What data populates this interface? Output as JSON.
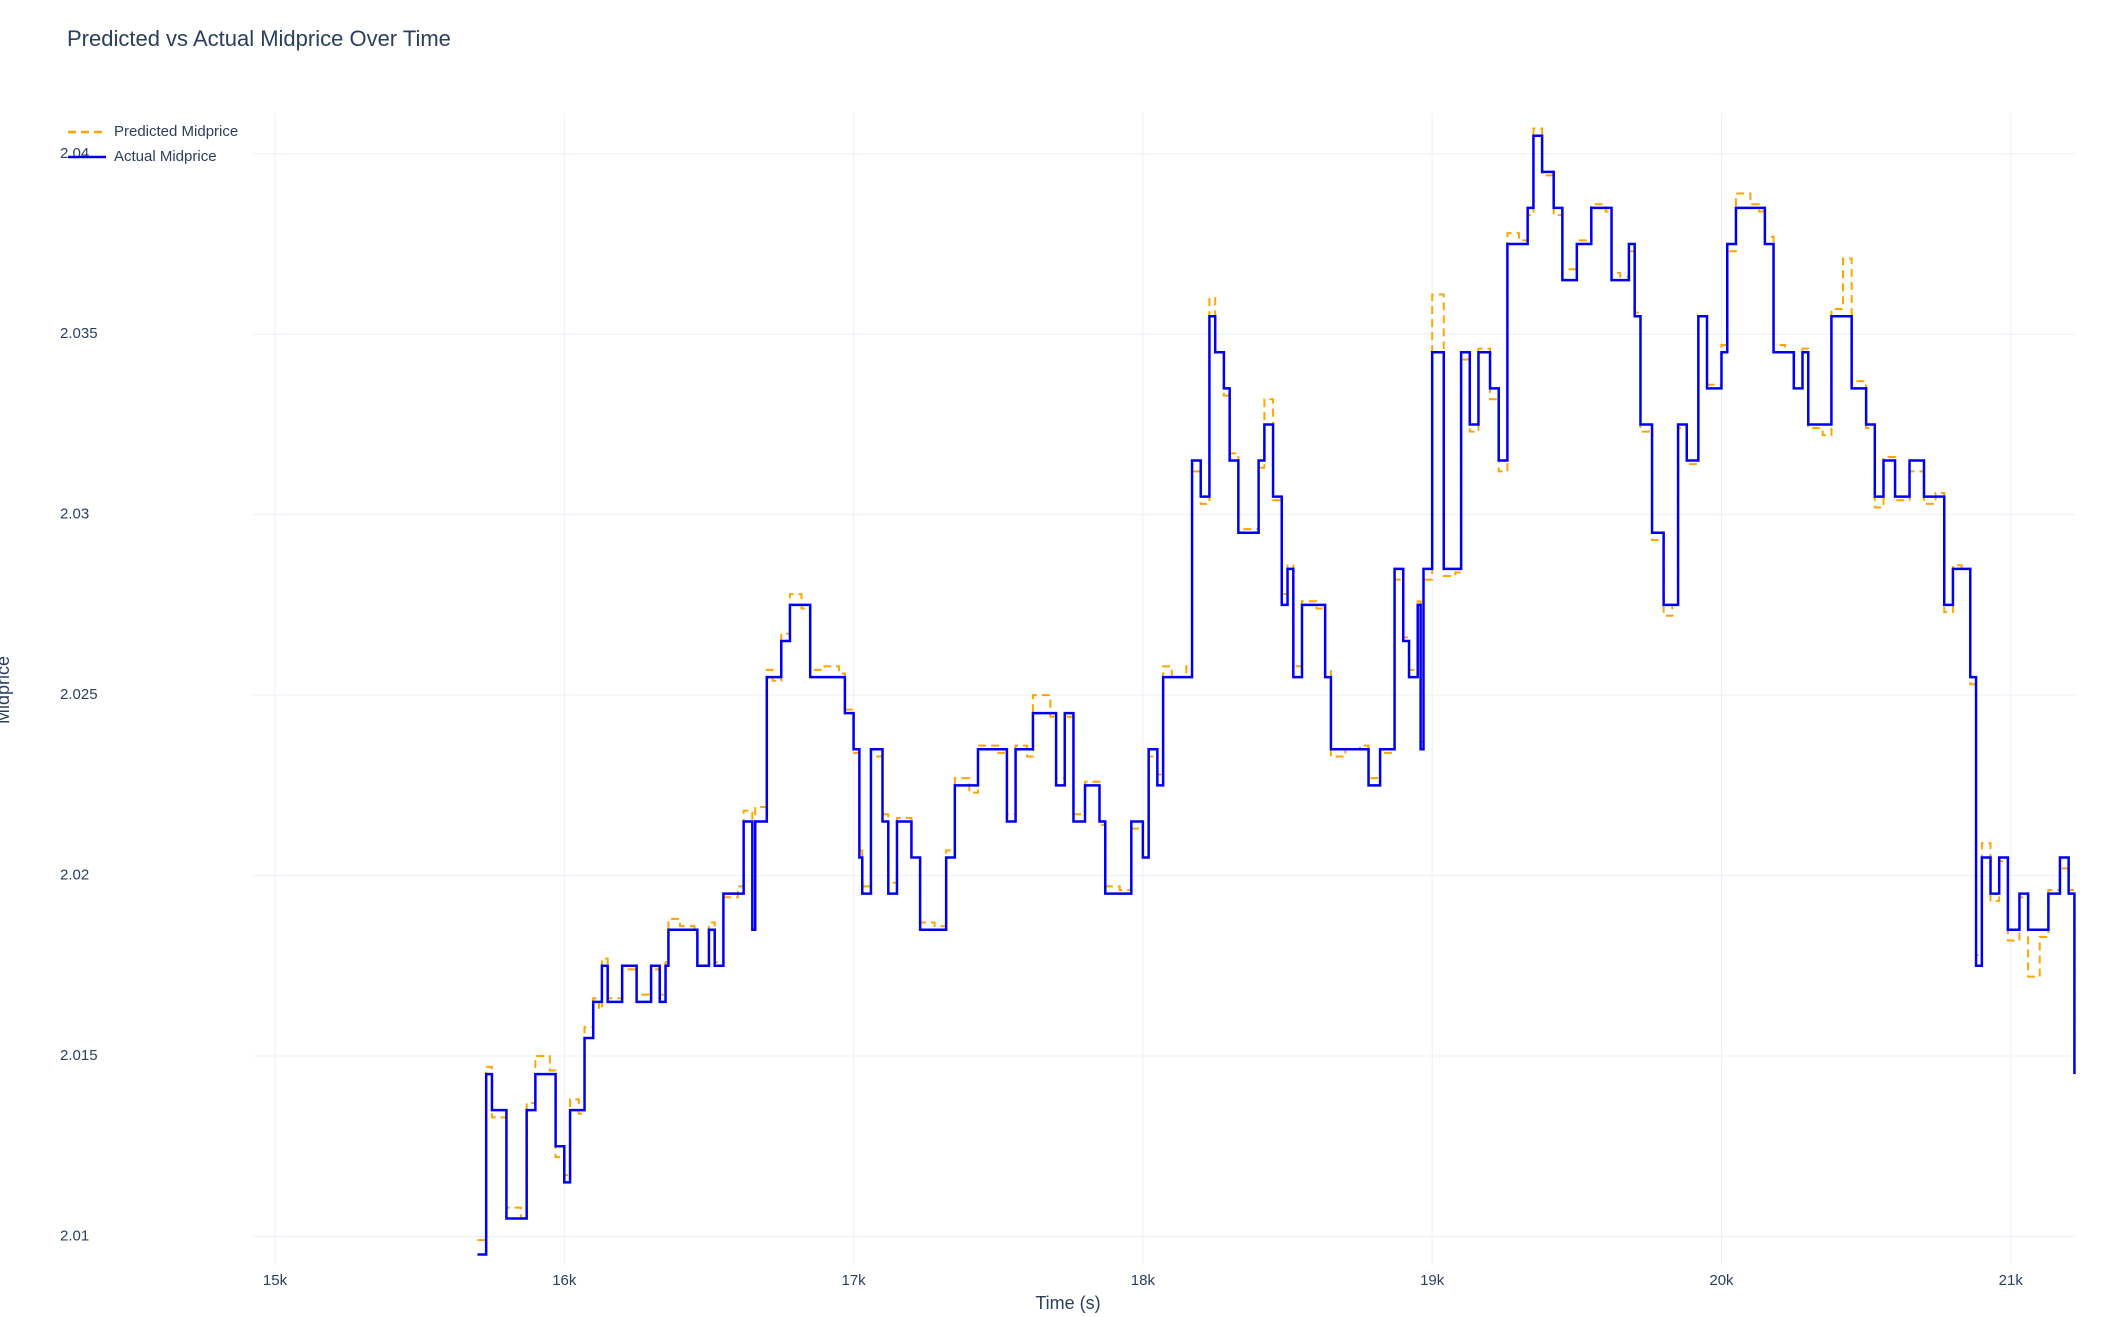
{
  "chart_data": {
    "type": "line",
    "title": "Predicted vs Actual Midprice Over Time",
    "x_label": "Time (s)",
    "y_label": "Midprice",
    "line_shape": "hv",
    "grid": true,
    "legend_position": "top-left",
    "xlim": [
      14924,
      21222
    ],
    "ylim": [
      2.00921,
      2.04113
    ],
    "xticks": [
      {
        "value": 15000,
        "label": "15k"
      },
      {
        "value": 16000,
        "label": "16k"
      },
      {
        "value": 17000,
        "label": "17k"
      },
      {
        "value": 18000,
        "label": "18k"
      },
      {
        "value": 19000,
        "label": "19k"
      },
      {
        "value": 20000,
        "label": "20k"
      },
      {
        "value": 21000,
        "label": "21k"
      }
    ],
    "yticks": [
      2.01,
      2.015,
      2.02,
      2.025,
      2.03,
      2.035,
      2.04
    ],
    "x": [
      15700,
      15730,
      15750,
      15800,
      15850,
      15870,
      15900,
      15950,
      15970,
      16000,
      16020,
      16050,
      16070,
      16100,
      16120,
      16130,
      16150,
      16200,
      16250,
      16300,
      16330,
      16350,
      16360,
      16400,
      16450,
      16460,
      16500,
      16520,
      16550,
      16600,
      16620,
      16650,
      16660,
      16700,
      16720,
      16750,
      16780,
      16820,
      16850,
      16900,
      16950,
      16970,
      17000,
      17020,
      17030,
      17060,
      17100,
      17120,
      17150,
      17200,
      17230,
      17280,
      17320,
      17350,
      17400,
      17430,
      17500,
      17530,
      17560,
      17600,
      17620,
      17680,
      17700,
      17730,
      17760,
      17800,
      17850,
      17870,
      17920,
      17960,
      18000,
      18020,
      18050,
      18070,
      18100,
      18150,
      18170,
      18200,
      18230,
      18250,
      18280,
      18300,
      18330,
      18380,
      18400,
      18420,
      18450,
      18480,
      18500,
      18520,
      18550,
      18600,
      18630,
      18650,
      18700,
      18750,
      18780,
      18820,
      18870,
      18900,
      18920,
      18950,
      18960,
      18970,
      19000,
      19040,
      19080,
      19100,
      19130,
      19160,
      19200,
      19230,
      19260,
      19300,
      19330,
      19350,
      19380,
      19420,
      19450,
      19500,
      19550,
      19600,
      19620,
      19650,
      19680,
      19700,
      19720,
      19760,
      19800,
      19830,
      19850,
      19880,
      19920,
      19950,
      20000,
      20020,
      20050,
      20100,
      20130,
      20150,
      20180,
      20220,
      20250,
      20280,
      20300,
      20350,
      20380,
      20420,
      20450,
      20500,
      20530,
      20560,
      20600,
      20650,
      20700,
      20740,
      20770,
      20800,
      20830,
      20860,
      20880,
      20900,
      20930,
      20960,
      20990,
      21030,
      21060,
      21100,
      21130,
      21170,
      21200,
      21220
    ],
    "series": [
      {
        "name": "Predicted Midprice",
        "color": "#ffa500",
        "dash": true,
        "values": [
          2.0099,
          2.0147,
          2.0133,
          2.0108,
          2.0105,
          2.0137,
          2.015,
          2.0146,
          2.0122,
          2.0117,
          2.0138,
          2.0134,
          2.0158,
          2.0166,
          2.0163,
          2.0177,
          2.0166,
          2.0174,
          2.0167,
          2.0174,
          2.0167,
          2.0176,
          2.0188,
          2.0186,
          2.0184,
          2.0175,
          2.0187,
          2.0176,
          2.0194,
          2.0197,
          2.0218,
          2.0187,
          2.0219,
          2.0257,
          2.0254,
          2.0267,
          2.0278,
          2.0274,
          2.0257,
          2.0258,
          2.0256,
          2.0246,
          2.0234,
          2.0207,
          2.0197,
          2.0233,
          2.0217,
          2.0198,
          2.0216,
          2.0205,
          2.0187,
          2.0186,
          2.0207,
          2.0227,
          2.0223,
          2.0236,
          2.0234,
          2.0217,
          2.0236,
          2.0233,
          2.025,
          2.0244,
          2.0227,
          2.0244,
          2.0217,
          2.0226,
          2.0214,
          2.0197,
          2.0196,
          2.0213,
          2.0207,
          2.0233,
          2.0228,
          2.0258,
          2.0255,
          2.0258,
          2.0312,
          2.0303,
          2.036,
          2.0345,
          2.0333,
          2.0317,
          2.0296,
          2.0296,
          2.0313,
          2.0332,
          2.0304,
          2.0278,
          2.0286,
          2.0258,
          2.0276,
          2.0274,
          2.0257,
          2.0233,
          2.0235,
          2.0236,
          2.0227,
          2.0234,
          2.0282,
          2.0266,
          2.0257,
          2.0276,
          2.0237,
          2.0282,
          2.0361,
          2.0283,
          2.0284,
          2.0343,
          2.0323,
          2.0346,
          2.0332,
          2.0312,
          2.0378,
          2.0376,
          2.0383,
          2.0407,
          2.0394,
          2.0383,
          2.0368,
          2.0376,
          2.0386,
          2.0384,
          2.0367,
          2.0366,
          2.0373,
          2.0356,
          2.0323,
          2.0293,
          2.0272,
          2.0275,
          2.0324,
          2.0314,
          2.0355,
          2.0336,
          2.0347,
          2.0373,
          2.0389,
          2.0386,
          2.0384,
          2.0377,
          2.0347,
          2.0345,
          2.0335,
          2.0346,
          2.0324,
          2.0322,
          2.0357,
          2.0371,
          2.0337,
          2.0324,
          2.0302,
          2.0316,
          2.0304,
          2.0312,
          2.0303,
          2.0306,
          2.0273,
          2.0286,
          2.0285,
          2.0253,
          2.0178,
          2.0209,
          2.0193,
          2.0204,
          2.0182,
          2.0194,
          2.0172,
          2.0183,
          2.0196,
          2.0202,
          2.0196,
          2.0147
        ]
      },
      {
        "name": "Actual Midprice",
        "color": "#0000ee",
        "dash": false,
        "values": [
          2.0095,
          2.0145,
          2.0135,
          2.0105,
          2.0105,
          2.0135,
          2.0145,
          2.0145,
          2.0125,
          2.0115,
          2.0135,
          2.0135,
          2.0155,
          2.0165,
          2.0165,
          2.0175,
          2.0165,
          2.0175,
          2.0165,
          2.0175,
          2.0165,
          2.0175,
          2.0185,
          2.0185,
          2.0185,
          2.0175,
          2.0185,
          2.0175,
          2.0195,
          2.0195,
          2.0215,
          2.0185,
          2.0215,
          2.0255,
          2.0255,
          2.0265,
          2.0275,
          2.0275,
          2.0255,
          2.0255,
          2.0255,
          2.0245,
          2.0235,
          2.0205,
          2.0195,
          2.0235,
          2.0215,
          2.0195,
          2.0215,
          2.0205,
          2.0185,
          2.0185,
          2.0205,
          2.0225,
          2.0225,
          2.0235,
          2.0235,
          2.0215,
          2.0235,
          2.0235,
          2.0245,
          2.0245,
          2.0225,
          2.0245,
          2.0215,
          2.0225,
          2.0215,
          2.0195,
          2.0195,
          2.0215,
          2.0205,
          2.0235,
          2.0225,
          2.0255,
          2.0255,
          2.0255,
          2.0315,
          2.0305,
          2.0355,
          2.0345,
          2.0335,
          2.0315,
          2.0295,
          2.0295,
          2.0315,
          2.0325,
          2.0305,
          2.0275,
          2.0285,
          2.0255,
          2.0275,
          2.0275,
          2.0255,
          2.0235,
          2.0235,
          2.0235,
          2.0225,
          2.0235,
          2.0285,
          2.0265,
          2.0255,
          2.0275,
          2.0235,
          2.0285,
          2.0345,
          2.0285,
          2.0285,
          2.0345,
          2.0325,
          2.0345,
          2.0335,
          2.0315,
          2.0375,
          2.0375,
          2.0385,
          2.0405,
          2.0395,
          2.0385,
          2.0365,
          2.0375,
          2.0385,
          2.0385,
          2.0365,
          2.0365,
          2.0375,
          2.0355,
          2.0325,
          2.0295,
          2.0275,
          2.0275,
          2.0325,
          2.0315,
          2.0355,
          2.0335,
          2.0345,
          2.0375,
          2.0385,
          2.0385,
          2.0385,
          2.0375,
          2.0345,
          2.0345,
          2.0335,
          2.0345,
          2.0325,
          2.0325,
          2.0355,
          2.0355,
          2.0335,
          2.0325,
          2.0305,
          2.0315,
          2.0305,
          2.0315,
          2.0305,
          2.0305,
          2.0275,
          2.0285,
          2.0285,
          2.0255,
          2.0175,
          2.0205,
          2.0195,
          2.0205,
          2.0185,
          2.0195,
          2.0185,
          2.0185,
          2.0195,
          2.0205,
          2.0195,
          2.0145
        ]
      }
    ]
  }
}
